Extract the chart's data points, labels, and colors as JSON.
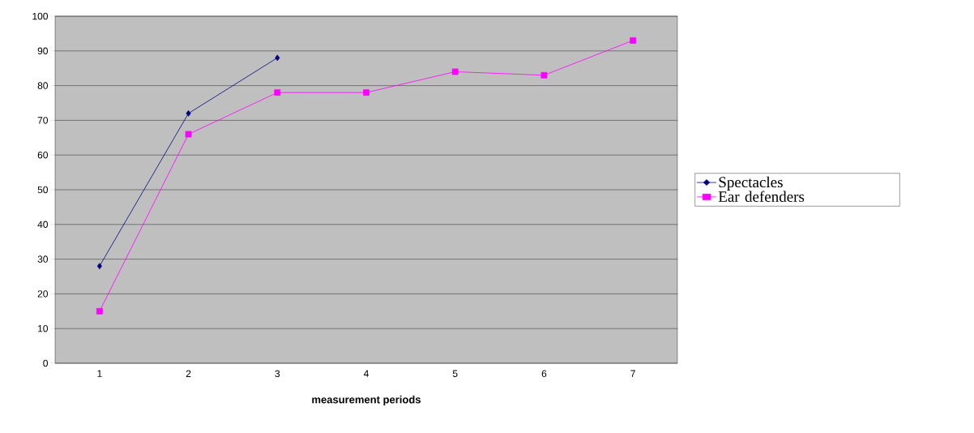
{
  "chart_data": {
    "type": "line",
    "xlabel": "measurement periods",
    "categories": [
      "1",
      "2",
      "3",
      "4",
      "5",
      "6",
      "7"
    ],
    "series": [
      {
        "name": "Spectacles",
        "color": "#000080",
        "marker": "diamond",
        "values": [
          28,
          72,
          88,
          null,
          null,
          null,
          null
        ]
      },
      {
        "name": "Ear defenders",
        "color": "#ff00ff",
        "marker": "square",
        "values": [
          15,
          66,
          78,
          78,
          84,
          83,
          93
        ]
      }
    ],
    "ylim": [
      0,
      100
    ],
    "yticks": [
      0,
      10,
      20,
      30,
      40,
      50,
      60,
      70,
      80,
      90,
      100
    ],
    "grid": "y",
    "legend": "right"
  }
}
